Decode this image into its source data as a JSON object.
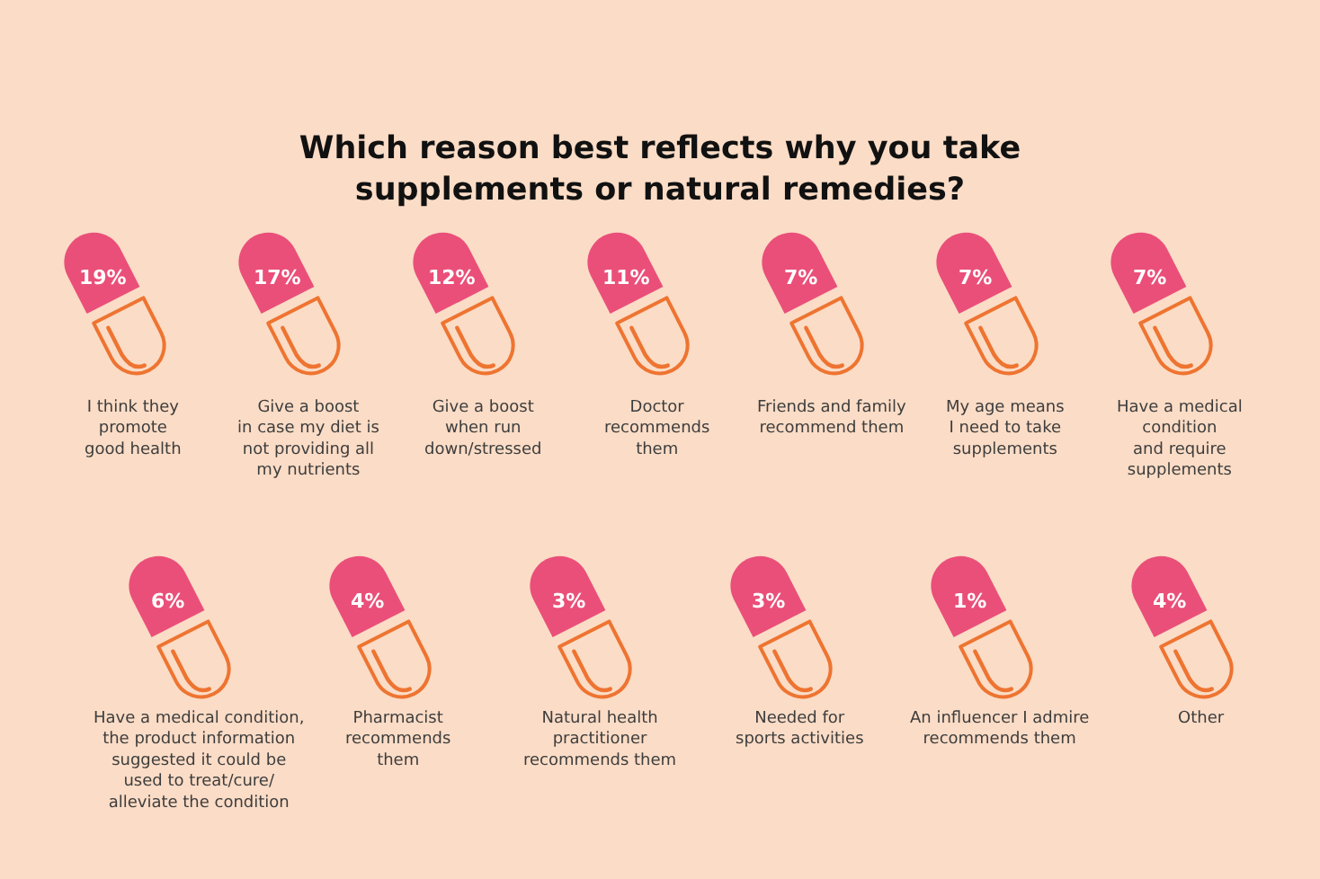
{
  "chart_data": {
    "type": "other",
    "title": "Which reason best reflects why you take\nsupplements or natural remedies?",
    "categories": [
      "I think they\npromote\ngood health",
      "Give a boost\nin case my diet is\nnot providing all\nmy nutrients",
      "Give a boost\nwhen run\ndown/stressed",
      "Doctor\nrecommends\nthem",
      "Friends and family\nrecommend them",
      "My age means\nI need to take\nsupplements",
      "Have a medical\ncondition\nand require\nsupplements",
      "Have a medical condition,\nthe product information\nsuggested it could be\nused to treat/cure/\nalleviate the condition",
      "Pharmacist\nrecommends\nthem",
      "Natural health\npractitioner\nrecommends them",
      "Needed for\nsports activities",
      "An influencer I admire\nrecommends them",
      "Other"
    ],
    "values": [
      19,
      17,
      12,
      11,
      7,
      7,
      7,
      6,
      4,
      3,
      3,
      1,
      4
    ],
    "value_labels": [
      "19%",
      "17%",
      "12%",
      "11%",
      "7%",
      "7%",
      "7%",
      "6%",
      "4%",
      "3%",
      "3%",
      "1%",
      "4%"
    ]
  }
}
